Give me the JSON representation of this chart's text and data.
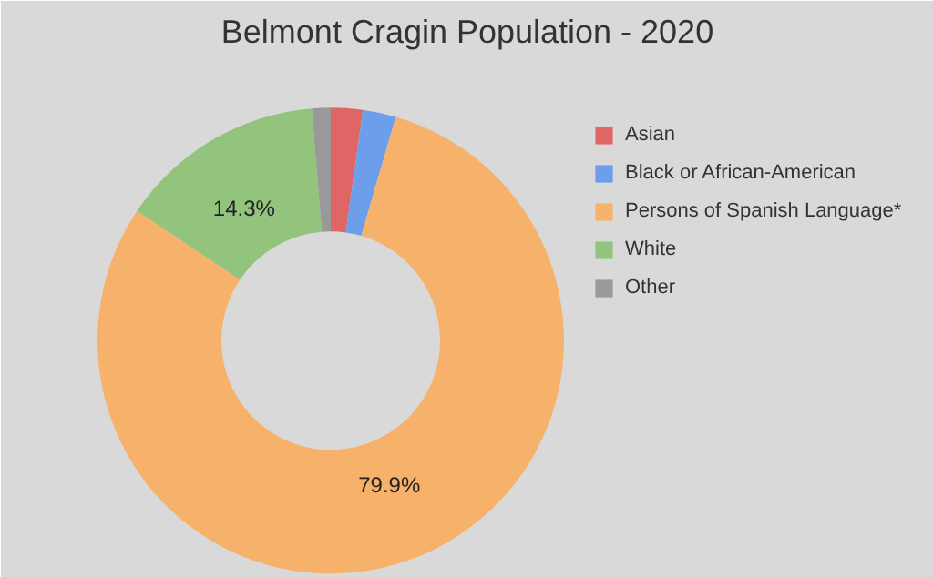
{
  "chart_data": {
    "type": "donut",
    "title": "Belmont Cragin Population - 2020",
    "categories": [
      "Asian",
      "Black or African-American",
      "Persons of Spanish Language*",
      "White",
      "Other"
    ],
    "values": [
      2.2,
      2.3,
      79.9,
      14.3,
      1.3
    ],
    "colors": [
      "#e06666",
      "#6d9eeb",
      "#f6b26b",
      "#93c47d",
      "#999999"
    ],
    "value_labels": [
      null,
      null,
      "79.9%",
      "14.3%",
      null
    ],
    "legend": "right"
  }
}
